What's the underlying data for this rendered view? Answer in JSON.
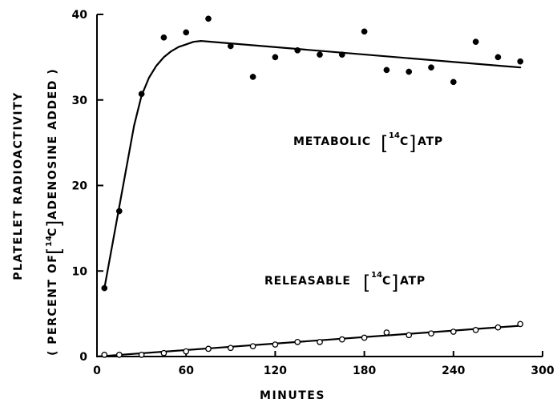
{
  "chart_data": {
    "type": "scatter",
    "xlabel": "MINUTES",
    "ylabel_line1": "PLATELET  RADIOACTIVITY",
    "ylabel_line2": {
      "prefix": "( PERCENT OF",
      "sup": "14",
      "element": "C",
      "suffix": "ADENOSINE ADDED )"
    },
    "xlim": [
      0,
      300
    ],
    "ylim": [
      0,
      40
    ],
    "x_ticks": [
      0,
      60,
      120,
      180,
      240,
      300
    ],
    "y_ticks": [
      0,
      10,
      20,
      30,
      40
    ],
    "grid": false,
    "series": [
      {
        "name": "METABOLIC [14C]ATP",
        "label_parts": {
          "prefix": "METABOLIC",
          "sup": "14",
          "element": "C",
          "suffix": "ATP"
        },
        "marker": "filled-circle",
        "points": [
          [
            5,
            8.0
          ],
          [
            15,
            17.0
          ],
          [
            30,
            30.7
          ],
          [
            45,
            37.3
          ],
          [
            60,
            37.9
          ],
          [
            75,
            39.5
          ],
          [
            90,
            36.3
          ],
          [
            105,
            32.7
          ],
          [
            120,
            35.0
          ],
          [
            135,
            35.8
          ],
          [
            150,
            35.3
          ],
          [
            165,
            35.3
          ],
          [
            180,
            38.0
          ],
          [
            195,
            33.5
          ],
          [
            210,
            33.3
          ],
          [
            225,
            33.8
          ],
          [
            240,
            32.1
          ],
          [
            255,
            36.8
          ],
          [
            270,
            35.0
          ],
          [
            285,
            34.5
          ]
        ],
        "fit_curve": [
          [
            5,
            8.0
          ],
          [
            15,
            17.5
          ],
          [
            25,
            27.0
          ],
          [
            30,
            30.5
          ],
          [
            35,
            32.6
          ],
          [
            40,
            34.0
          ],
          [
            45,
            35.0
          ],
          [
            50,
            35.7
          ],
          [
            55,
            36.2
          ],
          [
            60,
            36.5
          ],
          [
            65,
            36.8
          ],
          [
            70,
            36.9
          ],
          [
            285,
            33.8
          ]
        ]
      },
      {
        "name": "RELEASABLE [14C]ATP",
        "label_parts": {
          "prefix": "RELEASABLE",
          "sup": "14",
          "element": "C",
          "suffix": "ATP"
        },
        "marker": "open-circle",
        "points": [
          [
            5,
            0.2
          ],
          [
            15,
            0.2
          ],
          [
            30,
            0.2
          ],
          [
            45,
            0.4
          ],
          [
            60,
            0.6
          ],
          [
            75,
            0.9
          ],
          [
            90,
            1.0
          ],
          [
            105,
            1.2
          ],
          [
            120,
            1.4
          ],
          [
            135,
            1.7
          ],
          [
            150,
            1.7
          ],
          [
            165,
            2.0
          ],
          [
            180,
            2.2
          ],
          [
            195,
            2.8
          ],
          [
            210,
            2.5
          ],
          [
            225,
            2.7
          ],
          [
            240,
            2.9
          ],
          [
            255,
            3.1
          ],
          [
            270,
            3.4
          ],
          [
            285,
            3.8
          ]
        ],
        "fit_curve": [
          [
            0,
            0.0
          ],
          [
            285,
            3.6
          ]
        ]
      }
    ]
  }
}
